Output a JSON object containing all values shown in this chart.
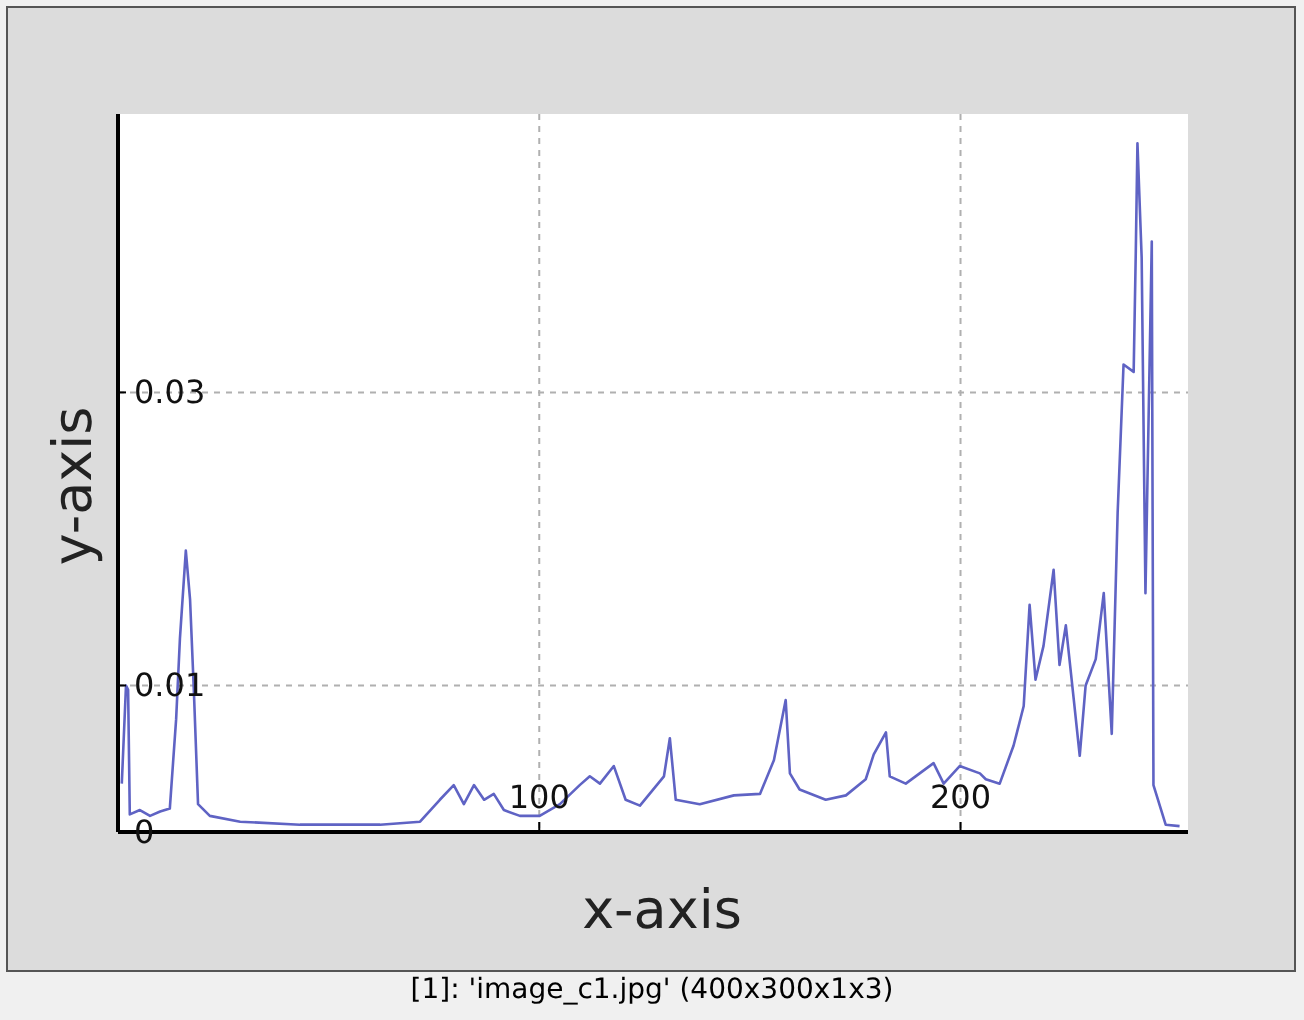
{
  "chart_data": {
    "type": "line",
    "xlabel": "x-axis",
    "ylabel": "y-axis",
    "annotations": [
      "[1]: 'image_c1.jpg' (400x300x1x3)"
    ],
    "xlim": [
      0,
      254
    ],
    "ylim": [
      0,
      0.049
    ],
    "xticks": [
      100,
      200
    ],
    "yticks": [
      0,
      0.01,
      0.03
    ],
    "grid": true,
    "marker": "none",
    "line_style": "solid",
    "series": [
      {
        "color": "#5f63c4",
        "x": [
          0.9,
          1.9,
          2.4,
          2.8,
          5.2,
          7.6,
          10.0,
          12.3,
          13.8,
          14.7,
          16.1,
          17.1,
          18.0,
          19.0,
          21.8,
          29.0,
          43.2,
          62.2,
          71.7,
          76.4,
          79.7,
          82.1,
          84.5,
          86.9,
          89.2,
          91.6,
          95.4,
          100.1,
          104.9,
          109.6,
          112.0,
          114.4,
          117.7,
          120.5,
          123.9,
          129.6,
          131.0,
          132.4,
          138.1,
          146.2,
          152.4,
          155.7,
          158.5,
          159.5,
          161.8,
          168.0,
          172.8,
          177.5,
          179.4,
          182.3,
          183.2,
          187.0,
          193.6,
          196.0,
          199.8,
          204.6,
          206.0,
          209.3,
          212.6,
          215.0,
          216.4,
          217.8,
          219.7,
          222.1,
          223.5,
          225.0,
          226.9,
          228.3,
          229.7,
          232.1,
          234.0,
          235.9,
          237.3,
          238.7,
          241.1,
          241.6,
          242.0,
          243.0,
          243.9,
          245.4,
          245.8,
          248.7,
          252.0
        ],
        "values": [
          0.0033,
          0.01,
          0.0097,
          0.0012,
          0.0015,
          0.0011,
          0.0014,
          0.0016,
          0.0077,
          0.0132,
          0.0192,
          0.0159,
          0.0097,
          0.0019,
          0.0011,
          0.0007,
          0.0005,
          0.0005,
          0.0007,
          0.0022,
          0.0032,
          0.0019,
          0.0032,
          0.0022,
          0.0026,
          0.0015,
          0.0011,
          0.0011,
          0.0019,
          0.0032,
          0.0038,
          0.0033,
          0.0045,
          0.0022,
          0.0018,
          0.0038,
          0.0064,
          0.0022,
          0.0019,
          0.0025,
          0.0026,
          0.0049,
          0.009,
          0.004,
          0.0029,
          0.0022,
          0.0025,
          0.0036,
          0.0053,
          0.0068,
          0.0038,
          0.0033,
          0.0047,
          0.0033,
          0.0045,
          0.004,
          0.0036,
          0.0033,
          0.0059,
          0.0086,
          0.0155,
          0.0104,
          0.0127,
          0.0179,
          0.0114,
          0.0141,
          0.009,
          0.0052,
          0.01,
          0.0118,
          0.0163,
          0.0067,
          0.0218,
          0.0319,
          0.0314,
          0.0395,
          0.047,
          0.0392,
          0.0163,
          0.0403,
          0.0032,
          0.0005,
          0.0004
        ]
      }
    ]
  }
}
